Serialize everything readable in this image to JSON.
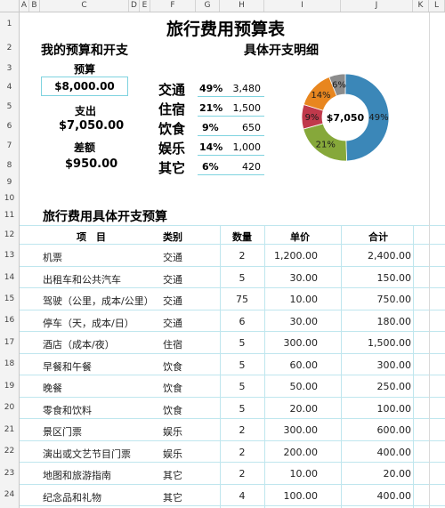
{
  "columns": [
    "A",
    "B",
    "C",
    "D",
    "E",
    "F",
    "G",
    "H",
    "I",
    "J",
    "K",
    "L"
  ],
  "rows": [
    "1",
    "2",
    "3",
    "4",
    "5",
    "6",
    "7",
    "8",
    "9",
    "10",
    "11",
    "12",
    "13",
    "14",
    "15",
    "16",
    "17",
    "18",
    "19",
    "20",
    "21",
    "22",
    "23",
    "24"
  ],
  "title": "旅行费用预算表",
  "left_heading": "我的预算和开支",
  "right_heading": "具体开支明细",
  "budget_label": "预算",
  "budget_value": "$8,000.00",
  "spent_label": "支出",
  "spent_value": "$7,050.00",
  "diff_label": "差额",
  "diff_value": "$950.00",
  "categories": [
    {
      "name": "交通",
      "pct": "49%",
      "amount": "3,480"
    },
    {
      "name": "住宿",
      "pct": "21%",
      "amount": "1,500"
    },
    {
      "name": "饮食",
      "pct": "9%",
      "amount": "650"
    },
    {
      "name": "娱乐",
      "pct": "14%",
      "amount": "1,000"
    },
    {
      "name": "其它",
      "pct": "6%",
      "amount": "420"
    }
  ],
  "chart_data": {
    "type": "pie",
    "center_label": "$7,050",
    "slices": [
      {
        "value": 49,
        "label": "49%",
        "color": "#3b87b8"
      },
      {
        "value": 21,
        "label": "21%",
        "color": "#86a83a"
      },
      {
        "value": 9,
        "label": "9%",
        "color": "#c0394b"
      },
      {
        "value": 14,
        "label": "14%",
        "color": "#e8861f"
      },
      {
        "value": 6,
        "label": "6%",
        "color": "#8c8c8c"
      }
    ]
  },
  "detail_heading": "旅行费用具体开支预算",
  "table_headers": [
    "项　目",
    "类别",
    "数量",
    "单价",
    "合计"
  ],
  "table_rows": [
    [
      "机票",
      "交通",
      "2",
      "1,200.00",
      "2,400.00"
    ],
    [
      "出租车和公共汽车",
      "交通",
      "5",
      "30.00",
      "150.00"
    ],
    [
      "驾驶（公里，成本/公里）",
      "交通",
      "75",
      "10.00",
      "750.00"
    ],
    [
      "停车（天，成本/日）",
      "交通",
      "6",
      "30.00",
      "180.00"
    ],
    [
      "酒店（成本/夜）",
      "住宿",
      "5",
      "300.00",
      "1,500.00"
    ],
    [
      "早餐和午餐",
      "饮食",
      "5",
      "60.00",
      "300.00"
    ],
    [
      "晚餐",
      "饮食",
      "5",
      "50.00",
      "250.00"
    ],
    [
      "零食和饮料",
      "饮食",
      "5",
      "20.00",
      "100.00"
    ],
    [
      "景区门票",
      "娱乐",
      "2",
      "300.00",
      "600.00"
    ],
    [
      "演出或文艺节目门票",
      "娱乐",
      "2",
      "200.00",
      "400.00"
    ],
    [
      "地图和旅游指南",
      "其它",
      "2",
      "10.00",
      "20.00"
    ],
    [
      "纪念品和礼物",
      "其它",
      "4",
      "100.00",
      "400.00"
    ]
  ]
}
